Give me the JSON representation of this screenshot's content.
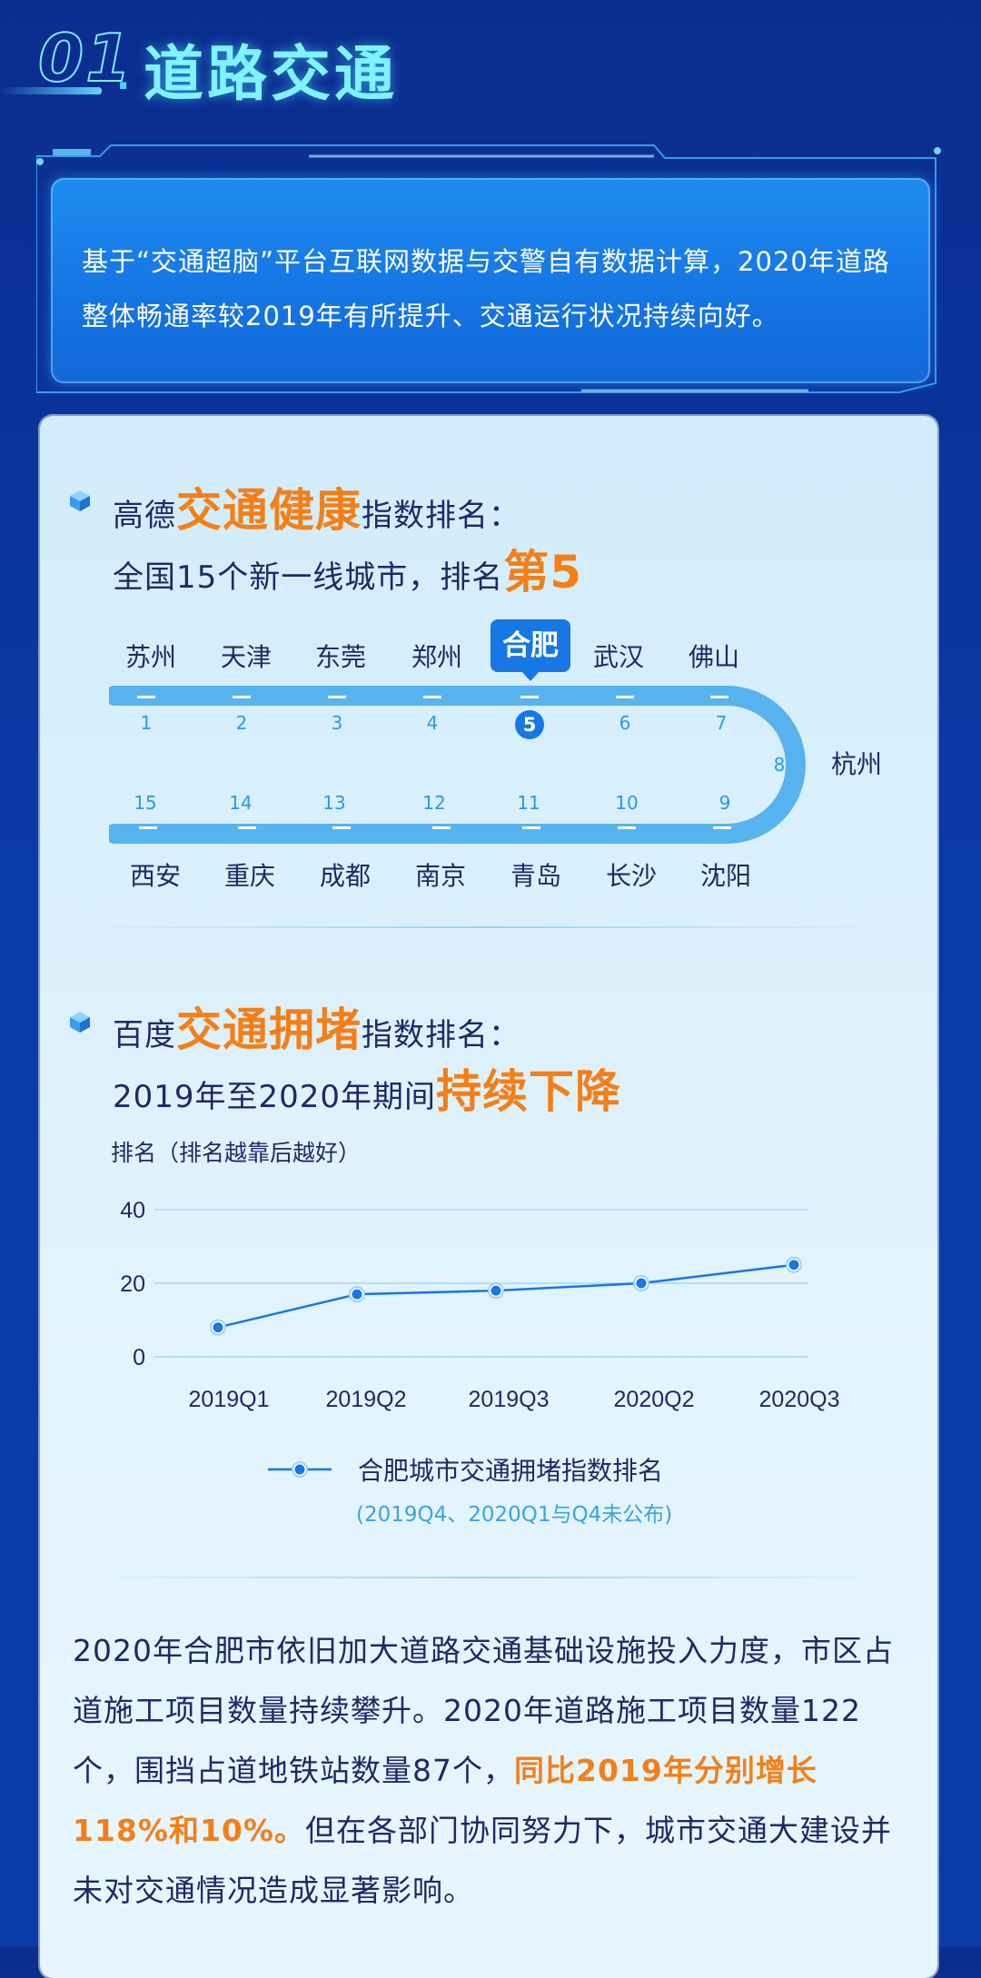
{
  "header": {
    "number": "01",
    "dot": ".",
    "title": "道路交通"
  },
  "intro": {
    "text": "基于“交通超脑”平台互联网数据与交警自有数据计算，2020年道路整体畅通率较2019年有所提升、交通运行状况持续向好。"
  },
  "section1": {
    "line1_pre": "高德",
    "line1_hl": "交通健康",
    "line1_post": "指数排名：",
    "line2_pre": "全国15个新一线城市，排名",
    "line2_hl": "第5"
  },
  "ranking": {
    "top": [
      {
        "city": "苏州",
        "rank": "1"
      },
      {
        "city": "天津",
        "rank": "2"
      },
      {
        "city": "东莞",
        "rank": "3"
      },
      {
        "city": "郑州",
        "rank": "4"
      },
      {
        "city": "合肥",
        "rank": "5"
      },
      {
        "city": "武汉",
        "rank": "6"
      },
      {
        "city": "佛山",
        "rank": "7"
      }
    ],
    "turn": {
      "city": "杭州",
      "rank": "8"
    },
    "bottom": [
      {
        "city": "西安",
        "rank": "15"
      },
      {
        "city": "重庆",
        "rank": "14"
      },
      {
        "city": "成都",
        "rank": "13"
      },
      {
        "city": "南京",
        "rank": "12"
      },
      {
        "city": "青岛",
        "rank": "11"
      },
      {
        "city": "长沙",
        "rank": "10"
      },
      {
        "city": "沈阳",
        "rank": "9"
      }
    ],
    "highlight_city": "合肥",
    "highlight_rank": "5"
  },
  "section2": {
    "line1_pre": "百度",
    "line1_hl": "交通拥堵",
    "line1_post": "指数排名：",
    "line2_pre": "2019年至2020年期间",
    "line2_hl": "持续下降"
  },
  "chart_data": {
    "type": "line",
    "ylabel": "排名（排名越靠后越好）",
    "categories": [
      "2019Q1",
      "2019Q2",
      "2019Q3",
      "2020Q2",
      "2020Q3"
    ],
    "series": [
      {
        "name": "合肥城市交通拥堵指数排名",
        "values": [
          8,
          17,
          18,
          20,
          25
        ]
      }
    ],
    "yticks": [
      0,
      20,
      40
    ],
    "ylim": [
      0,
      40
    ],
    "note": "(2019Q4、2020Q1与Q4未公布)",
    "color": "#1677e5"
  },
  "body": {
    "p1": "2020年合肥市依旧加大道路交通基础设施投入力度，市区占道施工项目数量持续攀升。2020年道路施工项目数量122个，围挡占道地铁站数量87个，",
    "p_hl": "同比2019年分别增长118%和10%。",
    "p2": "但在各部门协同努力下，城市交通大建设并未对交通情况造成显著影响。"
  },
  "colors": {
    "accent": "#f57f17",
    "primary": "#1677e5",
    "bg": "#0b2d8e"
  }
}
